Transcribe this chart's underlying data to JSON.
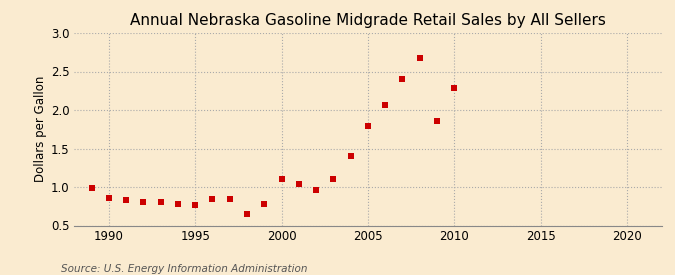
{
  "title": "Annual Nebraska Gasoline Midgrade Retail Sales by All Sellers",
  "ylabel": "Dollars per Gallon",
  "source": "Source: U.S. Energy Information Administration",
  "background_color": "#faebd0",
  "xlim": [
    1988,
    2022
  ],
  "ylim": [
    0.5,
    3.0
  ],
  "xticks": [
    1990,
    1995,
    2000,
    2005,
    2010,
    2015,
    2020
  ],
  "yticks": [
    0.5,
    1.0,
    1.5,
    2.0,
    2.5,
    3.0
  ],
  "years": [
    1989,
    1990,
    1991,
    1992,
    1993,
    1994,
    1995,
    1996,
    1997,
    1998,
    1999,
    2000,
    2001,
    2002,
    2003,
    2004,
    2005,
    2006,
    2007,
    2008,
    2009,
    2010
  ],
  "values": [
    0.99,
    0.86,
    0.83,
    0.81,
    0.8,
    0.78,
    0.76,
    0.85,
    0.85,
    0.65,
    0.78,
    1.1,
    1.04,
    0.96,
    1.1,
    1.4,
    1.79,
    2.06,
    2.4,
    2.68,
    1.86,
    2.28
  ],
  "marker_color": "#cc0000",
  "marker": "s",
  "marker_size": 4,
  "grid_color": "#aaaaaa",
  "grid_linestyle": ":",
  "title_fontsize": 11,
  "label_fontsize": 8.5,
  "tick_fontsize": 8.5,
  "source_fontsize": 7.5
}
